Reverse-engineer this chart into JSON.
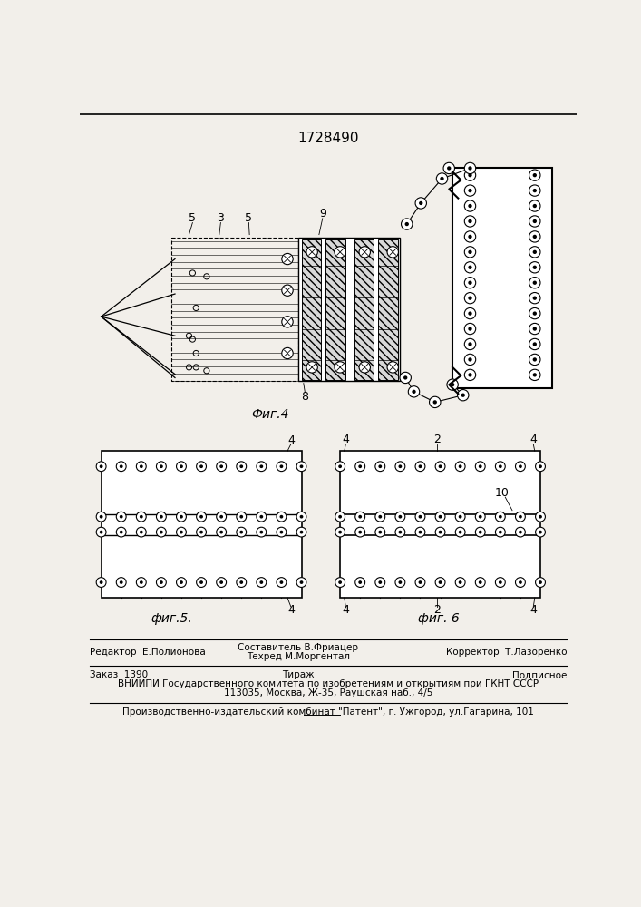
{
  "patent_number": "1728490",
  "bg_color": "#f2efea",
  "fig4_label": "Фиг.4",
  "fig5_label": "фиг.5.",
  "fig6_label": "фиг. 6",
  "labels_5_3_5": [
    "5",
    "3",
    "5"
  ],
  "label_9": "9",
  "label_8": "8",
  "label_4_top": "4",
  "label_4_bot": "4",
  "labels_fig6_top": [
    "4",
    "2",
    "4"
  ],
  "labels_fig6_bot": [
    "4",
    "2",
    "4"
  ],
  "label_10": "10",
  "footer_editor": "Редактор  Е.Полионова",
  "footer_comp": "Составитель В.Фриацер",
  "footer_tech": "Техред М.Моргентал",
  "footer_corr": "Корректор  Т.Лазоренко",
  "footer_order": "Заказ  1390",
  "footer_tirazh": "Тираж",
  "footer_podp": "Подписное",
  "footer_vniip": "ВНИИПИ Государственного комитета по изобретениям и открытиям при ГКНТ СССР",
  "footer_addr": "113035, Москва, Ж-35, Раушская наб., 4/5",
  "footer_patent": "Производственно-издательский комбинат \"Патент\", г. Ужгород, ул.Гагарина, 101"
}
